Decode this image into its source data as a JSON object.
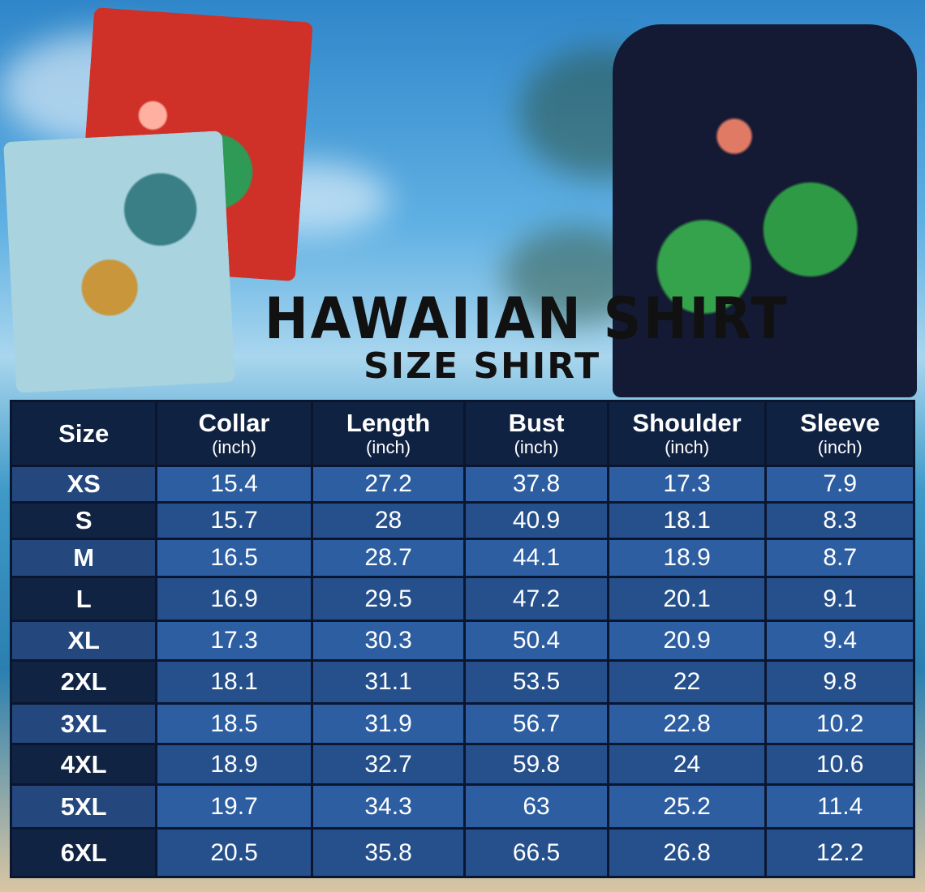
{
  "title": "HAWAIIAN SHIRT",
  "subtitle": "SIZE SHIRT",
  "colors": {
    "header_bg": "#102242",
    "cell_light": "#2d5ea2",
    "cell_dark": "#26508c",
    "size_dark": "#112342"
  },
  "table": {
    "headers": [
      {
        "label": "Size",
        "unit": ""
      },
      {
        "label": "Collar",
        "unit": "(inch)"
      },
      {
        "label": "Length",
        "unit": "(inch)"
      },
      {
        "label": "Bust",
        "unit": "(inch)"
      },
      {
        "label": "Shoulder",
        "unit": "(inch)"
      },
      {
        "label": "Sleeve",
        "unit": "(inch)"
      }
    ],
    "rows": [
      [
        "XS",
        "15.4",
        "27.2",
        "37.8",
        "17.3",
        "7.9"
      ],
      [
        "S",
        "15.7",
        "28",
        "40.9",
        "18.1",
        "8.3"
      ],
      [
        "M",
        "16.5",
        "28.7",
        "44.1",
        "18.9",
        "8.7"
      ],
      [
        "L",
        "16.9",
        "29.5",
        "47.2",
        "20.1",
        "9.1"
      ],
      [
        "XL",
        "17.3",
        "30.3",
        "50.4",
        "20.9",
        "9.4"
      ],
      [
        "2XL",
        "18.1",
        "31.1",
        "53.5",
        "22",
        "9.8"
      ],
      [
        "3XL",
        "18.5",
        "31.9",
        "56.7",
        "22.8",
        "10.2"
      ],
      [
        "4XL",
        "18.9",
        "32.7",
        "59.8",
        "24",
        "10.6"
      ],
      [
        "5XL",
        "19.7",
        "34.3",
        "63",
        "25.2",
        "11.4"
      ],
      [
        "6XL",
        "20.5",
        "35.8",
        "66.5",
        "26.8",
        "12.2"
      ]
    ]
  },
  "chart_data": {
    "type": "table",
    "columns": [
      "Size",
      "Collar (inch)",
      "Length (inch)",
      "Bust (inch)",
      "Shoulder (inch)",
      "Sleeve (inch)"
    ]
  }
}
